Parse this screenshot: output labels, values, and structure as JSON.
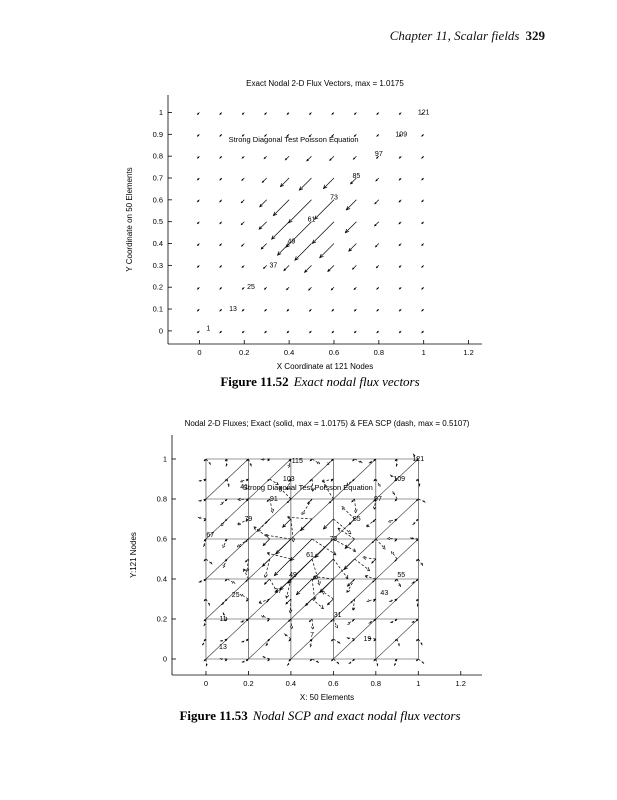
{
  "header": {
    "chapter": "Chapter 11, Scalar fields",
    "page_number": "329"
  },
  "figures": [
    {
      "caption_label": "Figure 11.52",
      "caption_text": "Exact nodal flux vectors"
    },
    {
      "caption_label": "Figure 11.53",
      "caption_text": "Nodal SCP and exact nodal flux vectors"
    }
  ],
  "chart_data": [
    {
      "type": "quiver",
      "title": "Exact Nodal 2-D Flux Vectors, max = 1.0175",
      "annotation": {
        "text": "Strong Diagonal Test Poisson Equation",
        "x": 0.42,
        "y": 0.865
      },
      "xlabel": "X Coordinate at 121 Nodes",
      "ylabel": "Y Coordinate on 50 Elements",
      "xlim": [
        -0.14,
        1.26
      ],
      "ylim": [
        -0.06,
        1.08
      ],
      "xticks": [
        0,
        0.2,
        0.4,
        0.6,
        0.8,
        1,
        1.2
      ],
      "yticks": [
        0,
        0.1,
        0.2,
        0.3,
        0.4,
        0.5,
        0.6,
        0.7,
        0.8,
        0.9,
        1
      ],
      "grid": {
        "nx": 11,
        "ny": 11,
        "x_range": [
          0,
          1
        ],
        "y_range": [
          0,
          1
        ]
      },
      "mesh": null,
      "series": [
        {
          "name": "Exact",
          "line_style": "solid",
          "max": 1.0175,
          "direction_deg": 225,
          "center": [
            0.52,
            0.53
          ],
          "sigma": 0.13,
          "base_len": 0.012,
          "scale_len": 0.155,
          "jitter_deg": 0
        }
      ],
      "node_labels": [
        {
          "n": "1",
          "x": 0.04,
          "y": 0.012
        },
        {
          "n": "13",
          "x": 0.15,
          "y": 0.1
        },
        {
          "n": "25",
          "x": 0.23,
          "y": 0.2
        },
        {
          "n": "37",
          "x": 0.33,
          "y": 0.3
        },
        {
          "n": "49",
          "x": 0.41,
          "y": 0.41
        },
        {
          "n": "61",
          "x": 0.5,
          "y": 0.51
        },
        {
          "n": "73",
          "x": 0.6,
          "y": 0.61
        },
        {
          "n": "85",
          "x": 0.7,
          "y": 0.71
        },
        {
          "n": "97",
          "x": 0.8,
          "y": 0.81
        },
        {
          "n": "109",
          "x": 0.9,
          "y": 0.9
        },
        {
          "n": "121",
          "x": 1.0,
          "y": 1.0
        }
      ]
    },
    {
      "type": "quiver",
      "title": "Nodal 2-D Fluxes; Exact (solid, max = 1.0175) & FEA SCP (dash, max = 0.5107)",
      "annotation": {
        "text": "Strong Diagonal Test Poisson Equation",
        "x": 0.48,
        "y": 0.845
      },
      "xlabel": "X: 50 Elements",
      "ylabel": "Y:121 Nodes",
      "xlim": [
        -0.16,
        1.3
      ],
      "ylim": [
        -0.08,
        1.12
      ],
      "xticks": [
        0,
        0.2,
        0.4,
        0.6,
        0.8,
        1,
        1.2
      ],
      "yticks": [
        0,
        0.2,
        0.4,
        0.6,
        0.8,
        1
      ],
      "grid": {
        "nx": 11,
        "ny": 11,
        "x_range": [
          0,
          1
        ],
        "y_range": [
          0,
          1
        ]
      },
      "mesh": {
        "divisions": 5,
        "range": [
          0,
          1
        ],
        "diagonal": "positive-slope"
      },
      "series": [
        {
          "name": "Exact",
          "line_style": "solid",
          "max": 1.0175,
          "direction_deg": 225,
          "center": [
            0.52,
            0.53
          ],
          "sigma": 0.13,
          "base_len": 0.012,
          "scale_len": 0.155,
          "jitter_deg": 0
        },
        {
          "name": "FEA SCP",
          "line_style": "dash",
          "max": 0.5107,
          "direction_deg": 225,
          "center": [
            0.5,
            0.58
          ],
          "sigma": 0.2,
          "base_len": 0.032,
          "scale_len": 0.105,
          "jitter_deg": 220
        }
      ],
      "node_labels": [
        {
          "n": "115",
          "x": 0.43,
          "y": 0.99
        },
        {
          "n": "121",
          "x": 1.0,
          "y": 1.0
        },
        {
          "n": "103",
          "x": 0.39,
          "y": 0.9
        },
        {
          "n": "109",
          "x": 0.91,
          "y": 0.9
        },
        {
          "n": "41",
          "x": 0.18,
          "y": 0.86
        },
        {
          "n": "91",
          "x": 0.32,
          "y": 0.8
        },
        {
          "n": "97",
          "x": 0.81,
          "y": 0.8
        },
        {
          "n": "79",
          "x": 0.2,
          "y": 0.7
        },
        {
          "n": "85",
          "x": 0.71,
          "y": 0.7
        },
        {
          "n": "67",
          "x": 0.02,
          "y": 0.62
        },
        {
          "n": "73",
          "x": 0.6,
          "y": 0.6
        },
        {
          "n": "61",
          "x": 0.49,
          "y": 0.52
        },
        {
          "n": "49",
          "x": 0.41,
          "y": 0.42
        },
        {
          "n": "55",
          "x": 0.92,
          "y": 0.42
        },
        {
          "n": "37",
          "x": 0.34,
          "y": 0.34
        },
        {
          "n": "43",
          "x": 0.84,
          "y": 0.33
        },
        {
          "n": "25",
          "x": 0.14,
          "y": 0.32
        },
        {
          "n": "31",
          "x": 0.62,
          "y": 0.22
        },
        {
          "n": "11",
          "x": 0.08,
          "y": 0.2
        },
        {
          "n": "7",
          "x": 0.5,
          "y": 0.12
        },
        {
          "n": "19",
          "x": 0.76,
          "y": 0.1
        },
        {
          "n": "13",
          "x": 0.08,
          "y": 0.06
        }
      ]
    }
  ]
}
